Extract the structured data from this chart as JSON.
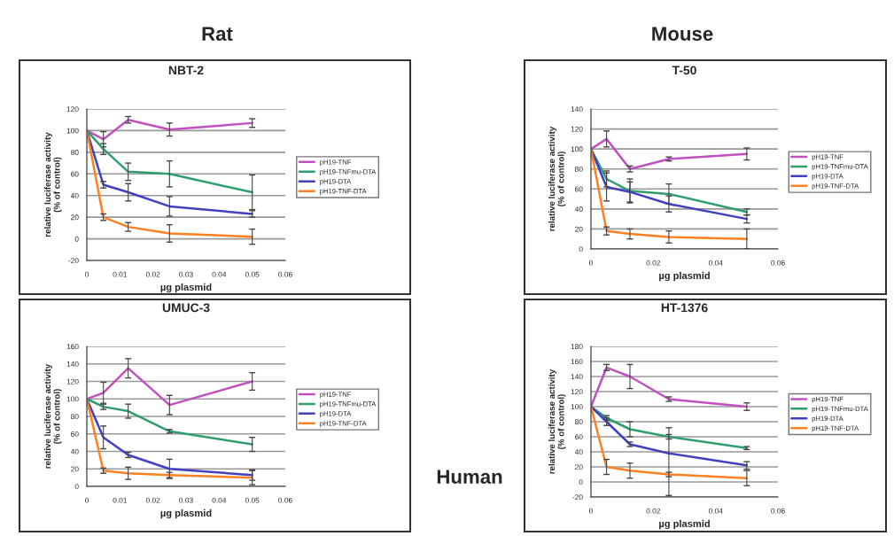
{
  "chart_data": [
    {
      "type": "line",
      "title": "NBT-2",
      "xlabel": "µg plasmid",
      "ylabel": "relative luciferase activity\n(% of control)",
      "annotations": [
        "Rat"
      ],
      "x": [
        0,
        0.005,
        0.0125,
        0.025,
        0.05
      ],
      "xlim": [
        0,
        0.06
      ],
      "xticks": [
        0,
        0.01,
        0.02,
        0.03,
        0.04,
        0.05,
        0.06
      ],
      "ylim": [
        -20,
        120
      ],
      "yticks": [
        -20,
        0,
        20,
        40,
        60,
        80,
        100,
        120
      ],
      "grid": "y",
      "legend": "right",
      "series": [
        {
          "name": "pH19-TNF",
          "color": "#c050c0",
          "values": [
            100,
            92,
            110,
            101,
            107
          ],
          "errors": [
            null,
            7,
            3,
            6,
            4
          ]
        },
        {
          "name": "pH19-TNFmu-DTA",
          "color": "#2e9e6e",
          "values": [
            100,
            83,
            62,
            60,
            43
          ],
          "errors": [
            null,
            5,
            8,
            12,
            16
          ]
        },
        {
          "name": "pH19-DTA",
          "color": "#4040c0",
          "values": [
            100,
            50,
            43,
            30,
            23
          ],
          "errors": [
            null,
            3,
            8,
            9,
            3
          ]
        },
        {
          "name": "pH19-TNF-DTA",
          "color": "#ff8020",
          "values": [
            100,
            20,
            11,
            5,
            2
          ],
          "errors": [
            null,
            3,
            4,
            8,
            7
          ]
        }
      ]
    },
    {
      "type": "line",
      "title": "T-50",
      "xlabel": "µg plasmid",
      "ylabel": "relative luciferase activity\n(% of control)",
      "annotations": [
        "Mouse"
      ],
      "x": [
        0,
        0.005,
        0.0125,
        0.025,
        0.05
      ],
      "xlim": [
        0,
        0.06
      ],
      "xticks": [
        0,
        0.02,
        0.04,
        0.06
      ],
      "ylim": [
        0,
        140
      ],
      "yticks": [
        0,
        20,
        40,
        60,
        80,
        100,
        120,
        140
      ],
      "grid": "y",
      "legend": "right",
      "series": [
        {
          "name": "pH19-TNF",
          "color": "#c050c0",
          "values": [
            100,
            110,
            80,
            90,
            95
          ],
          "errors": [
            null,
            8,
            3,
            2,
            6
          ]
        },
        {
          "name": "pH19-TNFmu-DTA",
          "color": "#2e9e6e",
          "values": [
            100,
            70,
            58,
            55,
            37
          ],
          "errors": [
            null,
            8,
            12,
            10,
            3
          ]
        },
        {
          "name": "pH19-DTA",
          "color": "#4040c0",
          "values": [
            100,
            62,
            57,
            45,
            30
          ],
          "errors": [
            null,
            14,
            10,
            8,
            4
          ]
        },
        {
          "name": "pH19-TNF-DTA",
          "color": "#ff8020",
          "values": [
            100,
            18,
            15,
            12,
            10
          ],
          "errors": [
            null,
            4,
            5,
            6,
            10
          ]
        }
      ]
    },
    {
      "type": "line",
      "title": "UMUC-3",
      "xlabel": "µg plasmid",
      "ylabel": "relative luciferase activity\n(% of control)",
      "annotations": [
        "Human"
      ],
      "x": [
        0,
        0.005,
        0.0125,
        0.025,
        0.05
      ],
      "xlim": [
        0,
        0.06
      ],
      "xticks": [
        0,
        0.01,
        0.02,
        0.03,
        0.04,
        0.05,
        0.06
      ],
      "ylim": [
        0,
        160
      ],
      "yticks": [
        0,
        20,
        40,
        60,
        80,
        100,
        120,
        140,
        160
      ],
      "grid": "y",
      "legend": "right",
      "series": [
        {
          "name": "pH19-TNF",
          "color": "#c050c0",
          "values": [
            100,
            107,
            135,
            93,
            120
          ],
          "errors": [
            null,
            12,
            11,
            11,
            10
          ]
        },
        {
          "name": "pH19-TNFmu-DTA",
          "color": "#2e9e6e",
          "values": [
            100,
            91,
            86,
            63,
            48
          ],
          "errors": [
            null,
            3,
            8,
            2,
            8
          ]
        },
        {
          "name": "pH19-DTA",
          "color": "#4040c0",
          "values": [
            100,
            56,
            36,
            20,
            13
          ],
          "errors": [
            null,
            13,
            3,
            11,
            6
          ]
        },
        {
          "name": "pH19-TNF-DTA",
          "color": "#ff8020",
          "values": [
            100,
            18,
            15,
            13,
            10
          ],
          "errors": [
            null,
            3,
            7,
            3,
            8
          ]
        }
      ]
    },
    {
      "type": "line",
      "title": "HT-1376",
      "xlabel": "µg plasmid",
      "ylabel": "relative luciferase activity\n(% of control)",
      "x": [
        0,
        0.005,
        0.0125,
        0.025,
        0.05
      ],
      "xlim": [
        0,
        0.06
      ],
      "xticks": [
        0,
        0.02,
        0.04,
        0.06
      ],
      "ylim": [
        -20,
        180
      ],
      "yticks": [
        -20,
        0,
        20,
        40,
        60,
        80,
        100,
        120,
        140,
        160,
        180
      ],
      "grid": "y",
      "legend": "right",
      "series": [
        {
          "name": "pH19-TNF",
          "color": "#c050c0",
          "values": [
            100,
            152,
            140,
            110,
            100
          ],
          "errors": [
            null,
            4,
            16,
            3,
            5
          ]
        },
        {
          "name": "pH19-TNFmu-DTA",
          "color": "#2e9e6e",
          "values": [
            100,
            85,
            70,
            60,
            45
          ],
          "errors": [
            null,
            3,
            10,
            3,
            2
          ]
        },
        {
          "name": "pH19-DTA",
          "color": "#4040c0",
          "values": [
            100,
            80,
            50,
            38,
            22
          ],
          "errors": [
            null,
            5,
            3,
            [
              -18,
              72
            ],
            5
          ]
        },
        {
          "name": "pH19-TNF-DTA",
          "color": "#ff8020",
          "values": [
            100,
            20,
            15,
            10,
            5
          ],
          "errors": [
            null,
            10,
            10,
            3,
            10
          ]
        }
      ]
    }
  ]
}
